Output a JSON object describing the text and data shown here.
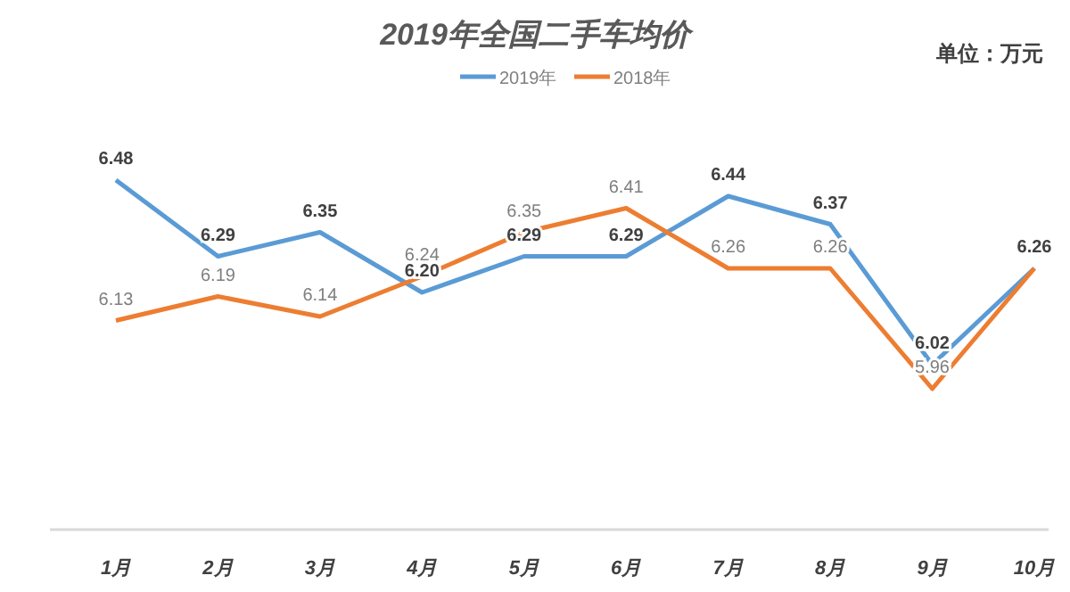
{
  "chart_data": {
    "type": "line",
    "title": "2019年全国二手车均价",
    "annotations": [
      "单位：万元"
    ],
    "categories": [
      "1月",
      "2月",
      "3月",
      "4月",
      "5月",
      "6月",
      "7月",
      "8月",
      "9月",
      "10月"
    ],
    "series": [
      {
        "name": "2019年",
        "color": "#5b9bd5",
        "values": [
          6.48,
          6.29,
          6.35,
          6.2,
          6.29,
          6.29,
          6.44,
          6.37,
          6.02,
          6.26
        ],
        "value_labels": [
          "6.48",
          "6.29",
          "6.35",
          "6.20",
          "6.29",
          "6.29",
          "6.44",
          "6.37",
          "6.02",
          "6.26"
        ]
      },
      {
        "name": "2018年",
        "color": "#ed7d31",
        "values": [
          6.13,
          6.19,
          6.14,
          6.24,
          6.35,
          6.41,
          6.26,
          6.26,
          5.96,
          6.26
        ],
        "value_labels": [
          "6.13",
          "6.19",
          "6.14",
          "6.24",
          "6.35",
          "6.41",
          "6.26",
          "6.26",
          "5.96",
          null
        ]
      }
    ],
    "legend": "top",
    "grid": false,
    "marker": "none",
    "line_style": "solid"
  }
}
